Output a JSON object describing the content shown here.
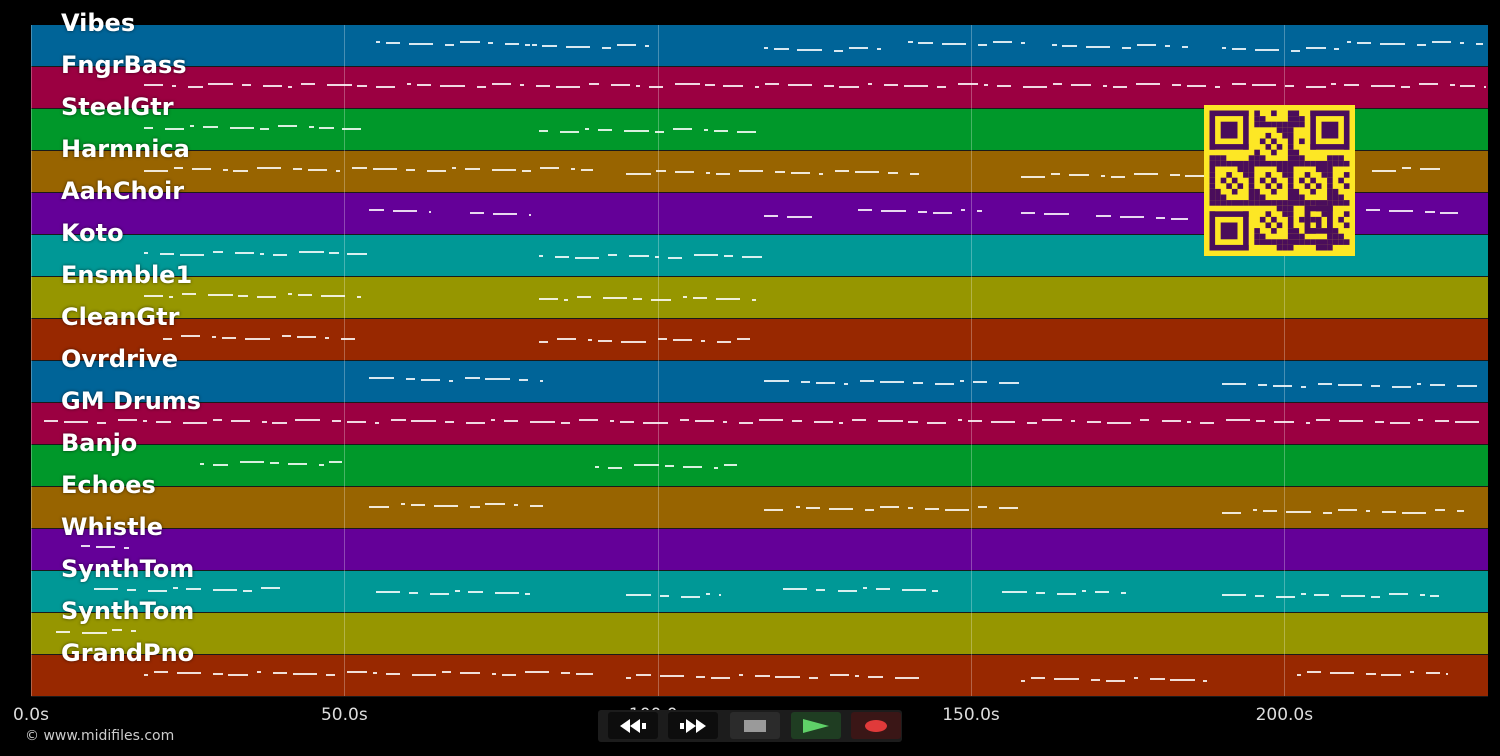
{
  "tracks": [
    {
      "name": "Vibes",
      "color": "#006498"
    },
    {
      "name": "FngrBass",
      "color": "#9b0041"
    },
    {
      "name": "SteelGtr",
      "color": "#00982a"
    },
    {
      "name": "Harmnica",
      "color": "#986400"
    },
    {
      "name": "AahChoir",
      "color": "#640098"
    },
    {
      "name": "Koto",
      "color": "#009896"
    },
    {
      "name": "Ensmble1",
      "color": "#969600"
    },
    {
      "name": "CleanGtr",
      "color": "#982800"
    },
    {
      "name": "Ovrdrive",
      "color": "#006498"
    },
    {
      "name": "GM Drums",
      "color": "#9b0041"
    },
    {
      "name": "Banjo",
      "color": "#00982a"
    },
    {
      "name": "Echoes",
      "color": "#986400"
    },
    {
      "name": "Whistle",
      "color": "#640098"
    },
    {
      "name": "SynthTom",
      "color": "#009896"
    },
    {
      "name": "SynthTom",
      "color": "#969600"
    },
    {
      "name": "GrandPno",
      "color": "#982800"
    }
  ],
  "timeline": {
    "max_seconds": 232.5,
    "ticks": [
      {
        "seconds": 0,
        "label": "0.0s"
      },
      {
        "seconds": 50,
        "label": "50.0s"
      },
      {
        "seconds": 100,
        "label": "100.0s"
      },
      {
        "seconds": 150,
        "label": "150.0s"
      },
      {
        "seconds": 200,
        "label": "200.0s"
      }
    ]
  },
  "footer": {
    "copyright": "© www.midifiles.com"
  },
  "controls": [
    {
      "name": "rewind-button",
      "icon": "rewind-icon",
      "color": "#ffffff"
    },
    {
      "name": "fast-forward-button",
      "icon": "fast-forward-icon",
      "color": "#ffffff"
    },
    {
      "name": "stop-button",
      "icon": "stop-icon",
      "color": "#9a9a9a"
    },
    {
      "name": "play-button",
      "icon": "play-icon",
      "color": "#5fd068"
    },
    {
      "name": "record-button",
      "icon": "record-icon",
      "color": "#e03a3a"
    }
  ],
  "qr_code": {
    "color": "#fde725",
    "module_color": "#4a0d5b"
  }
}
